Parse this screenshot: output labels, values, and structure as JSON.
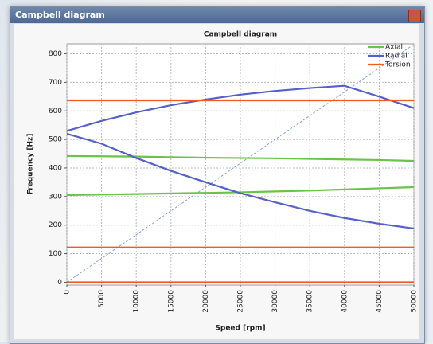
{
  "window": {
    "title": "Campbell diagram"
  },
  "chart_data": {
    "type": "line",
    "title": "Campbell diagram",
    "x_label": "Speed [rpm]",
    "y_label": "Frequency [Hz]",
    "x": [
      0,
      5000,
      10000,
      15000,
      20000,
      25000,
      30000,
      35000,
      40000,
      45000,
      50000
    ],
    "xlim": [
      0,
      50000
    ],
    "ylim": [
      -10,
      835
    ],
    "xticks": [
      0,
      5000,
      10000,
      15000,
      20000,
      25000,
      30000,
      35000,
      40000,
      45000,
      50000
    ],
    "yticks": [
      0,
      100,
      200,
      300,
      400,
      500,
      600,
      700,
      800
    ],
    "grid": true,
    "legend": "upper right",
    "series": [
      {
        "name": "Axial",
        "color": "#6cc24a",
        "curves": [
          [
            442,
            441,
            440,
            438,
            436,
            435,
            434,
            432,
            430,
            428,
            425
          ],
          [
            305,
            307,
            309,
            311,
            313,
            315,
            318,
            321,
            325,
            329,
            333
          ]
        ]
      },
      {
        "name": "Radial",
        "color": "#5561c8",
        "curves": [
          [
            530,
            565,
            595,
            620,
            640,
            657,
            670,
            680,
            688,
            650,
            610
          ],
          [
            520,
            485,
            435,
            390,
            350,
            312,
            280,
            250,
            225,
            205,
            188
          ]
        ]
      },
      {
        "name": "Torsion",
        "color": "#f05a28",
        "curves": [
          [
            637,
            637,
            637,
            637,
            637,
            637,
            637,
            637,
            637,
            637,
            637
          ],
          [
            122,
            122,
            122,
            122,
            122,
            122,
            122,
            122,
            122,
            122,
            122
          ],
          [
            0,
            0,
            0,
            0,
            0,
            0,
            0,
            0,
            0,
            0,
            0
          ]
        ]
      }
    ],
    "order_line": {
      "x": [
        0,
        50000
      ],
      "values": [
        0,
        833.3
      ],
      "color": "#7fa0e8"
    }
  }
}
